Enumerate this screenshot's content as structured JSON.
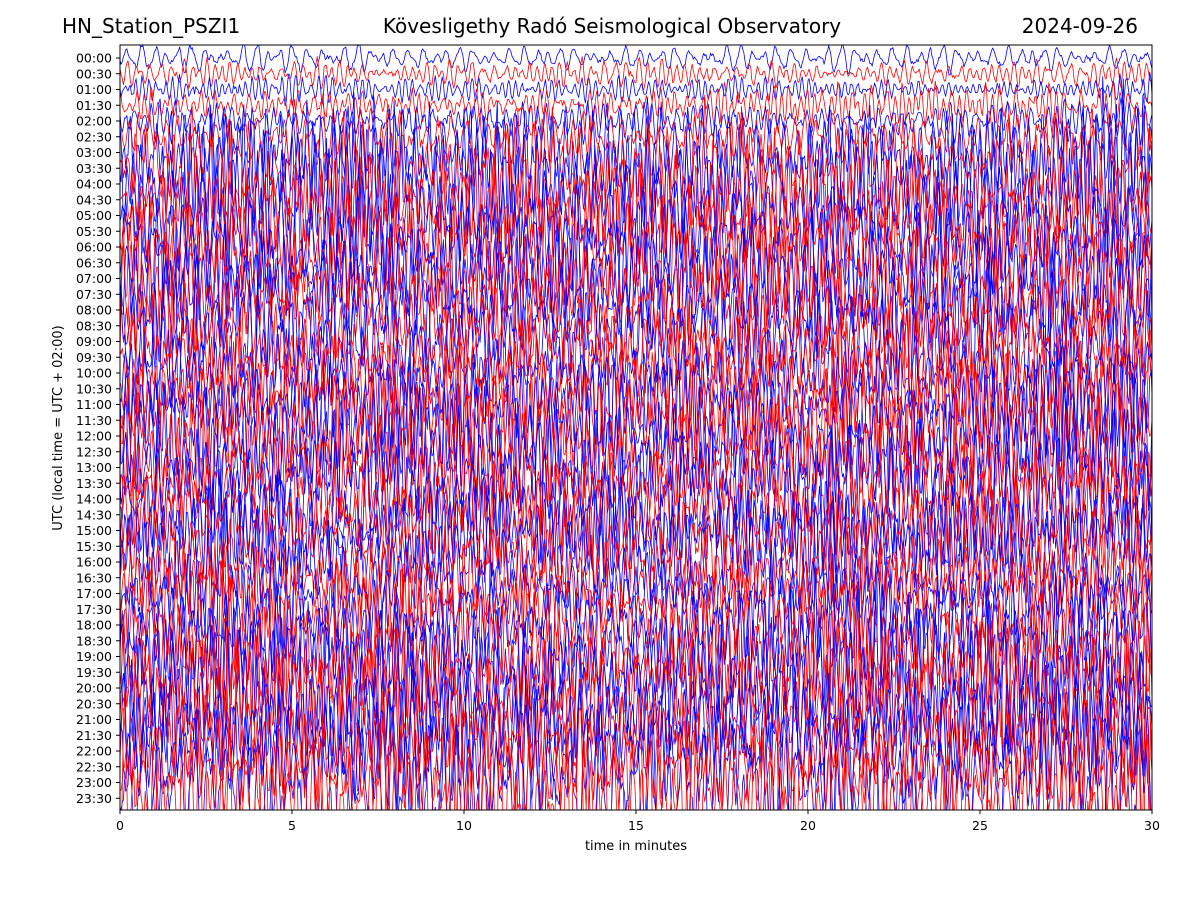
{
  "header": {
    "station": "HN_Station_PSZI1",
    "observatory": "Kövesligethy Radó Seismological Observatory",
    "date": "2024-09-26"
  },
  "chart_data": {
    "type": "line",
    "title": "Kövesligethy Radó Seismological Observatory",
    "xlabel": "time in minutes",
    "ylabel": "UTC (local time = UTC + 02:00)",
    "xlim": [
      0,
      30
    ],
    "x_ticks": [
      0,
      5,
      10,
      15,
      20,
      25,
      30
    ],
    "y_tick_labels": [
      "00:00",
      "00:30",
      "01:00",
      "01:30",
      "02:00",
      "02:30",
      "03:00",
      "03:30",
      "04:00",
      "04:30",
      "05:00",
      "05:30",
      "06:00",
      "06:30",
      "07:00",
      "07:30",
      "08:00",
      "08:30",
      "09:00",
      "09:30",
      "10:00",
      "10:30",
      "11:00",
      "11:30",
      "12:00",
      "12:30",
      "13:00",
      "13:30",
      "14:00",
      "14:30",
      "15:00",
      "15:30",
      "16:00",
      "16:30",
      "17:00",
      "17:30",
      "18:00",
      "18:30",
      "19:00",
      "19:30",
      "20:00",
      "20:30",
      "21:00",
      "21:30",
      "22:00",
      "22:30",
      "23:00",
      "23:30"
    ],
    "series_colors": [
      "#0000ff",
      "#ff0000"
    ],
    "trace_rows": 48,
    "grid": false,
    "amplitude_profile": [
      0.6,
      0.7,
      0.8,
      0.9,
      1.1,
      1.5,
      2.2,
      2.8,
      3.0,
      3.1,
      3.1,
      3.2,
      3.2,
      3.2,
      3.1,
      3.1,
      3.1,
      3.0,
      3.0,
      3.0,
      3.0,
      3.0,
      3.0,
      3.0,
      3.1,
      3.2,
      3.3,
      3.2,
      3.2,
      3.1,
      3.1,
      3.1,
      3.1,
      3.2,
      3.2,
      3.3,
      3.4,
      3.4,
      3.5,
      3.5,
      3.6,
      3.6,
      3.6,
      3.6,
      3.7,
      3.7,
      3.7,
      3.7
    ]
  }
}
